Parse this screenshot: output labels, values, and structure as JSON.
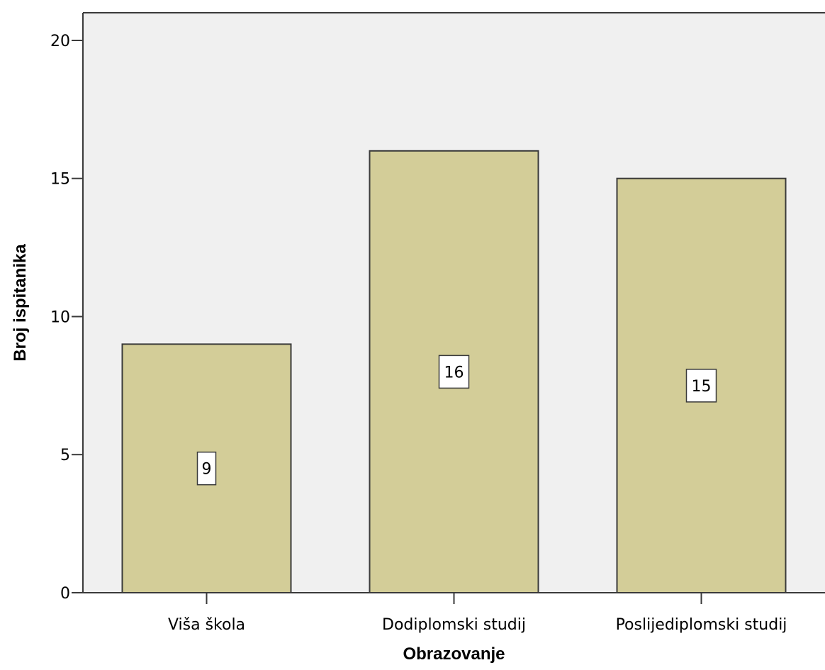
{
  "chart_data": {
    "type": "bar",
    "categories": [
      "Viša škola",
      "Dodiplomski studij",
      "Poslijediplomski studij"
    ],
    "values": [
      9,
      16,
      15
    ],
    "data_labels": [
      "9",
      "16",
      "15"
    ],
    "xlabel": "Obrazovanje",
    "ylabel": "Broj ispitanika",
    "ylim": [
      0,
      21
    ],
    "yticks": [
      0,
      5,
      10,
      15,
      20
    ],
    "grid": false,
    "colors": {
      "bar_fill": "#d3cd98",
      "bar_stroke": "#3a3a3a",
      "plot_background": "#f0f0f0",
      "axis": "#3a3a3a",
      "label_box_fill": "#ffffff"
    }
  }
}
